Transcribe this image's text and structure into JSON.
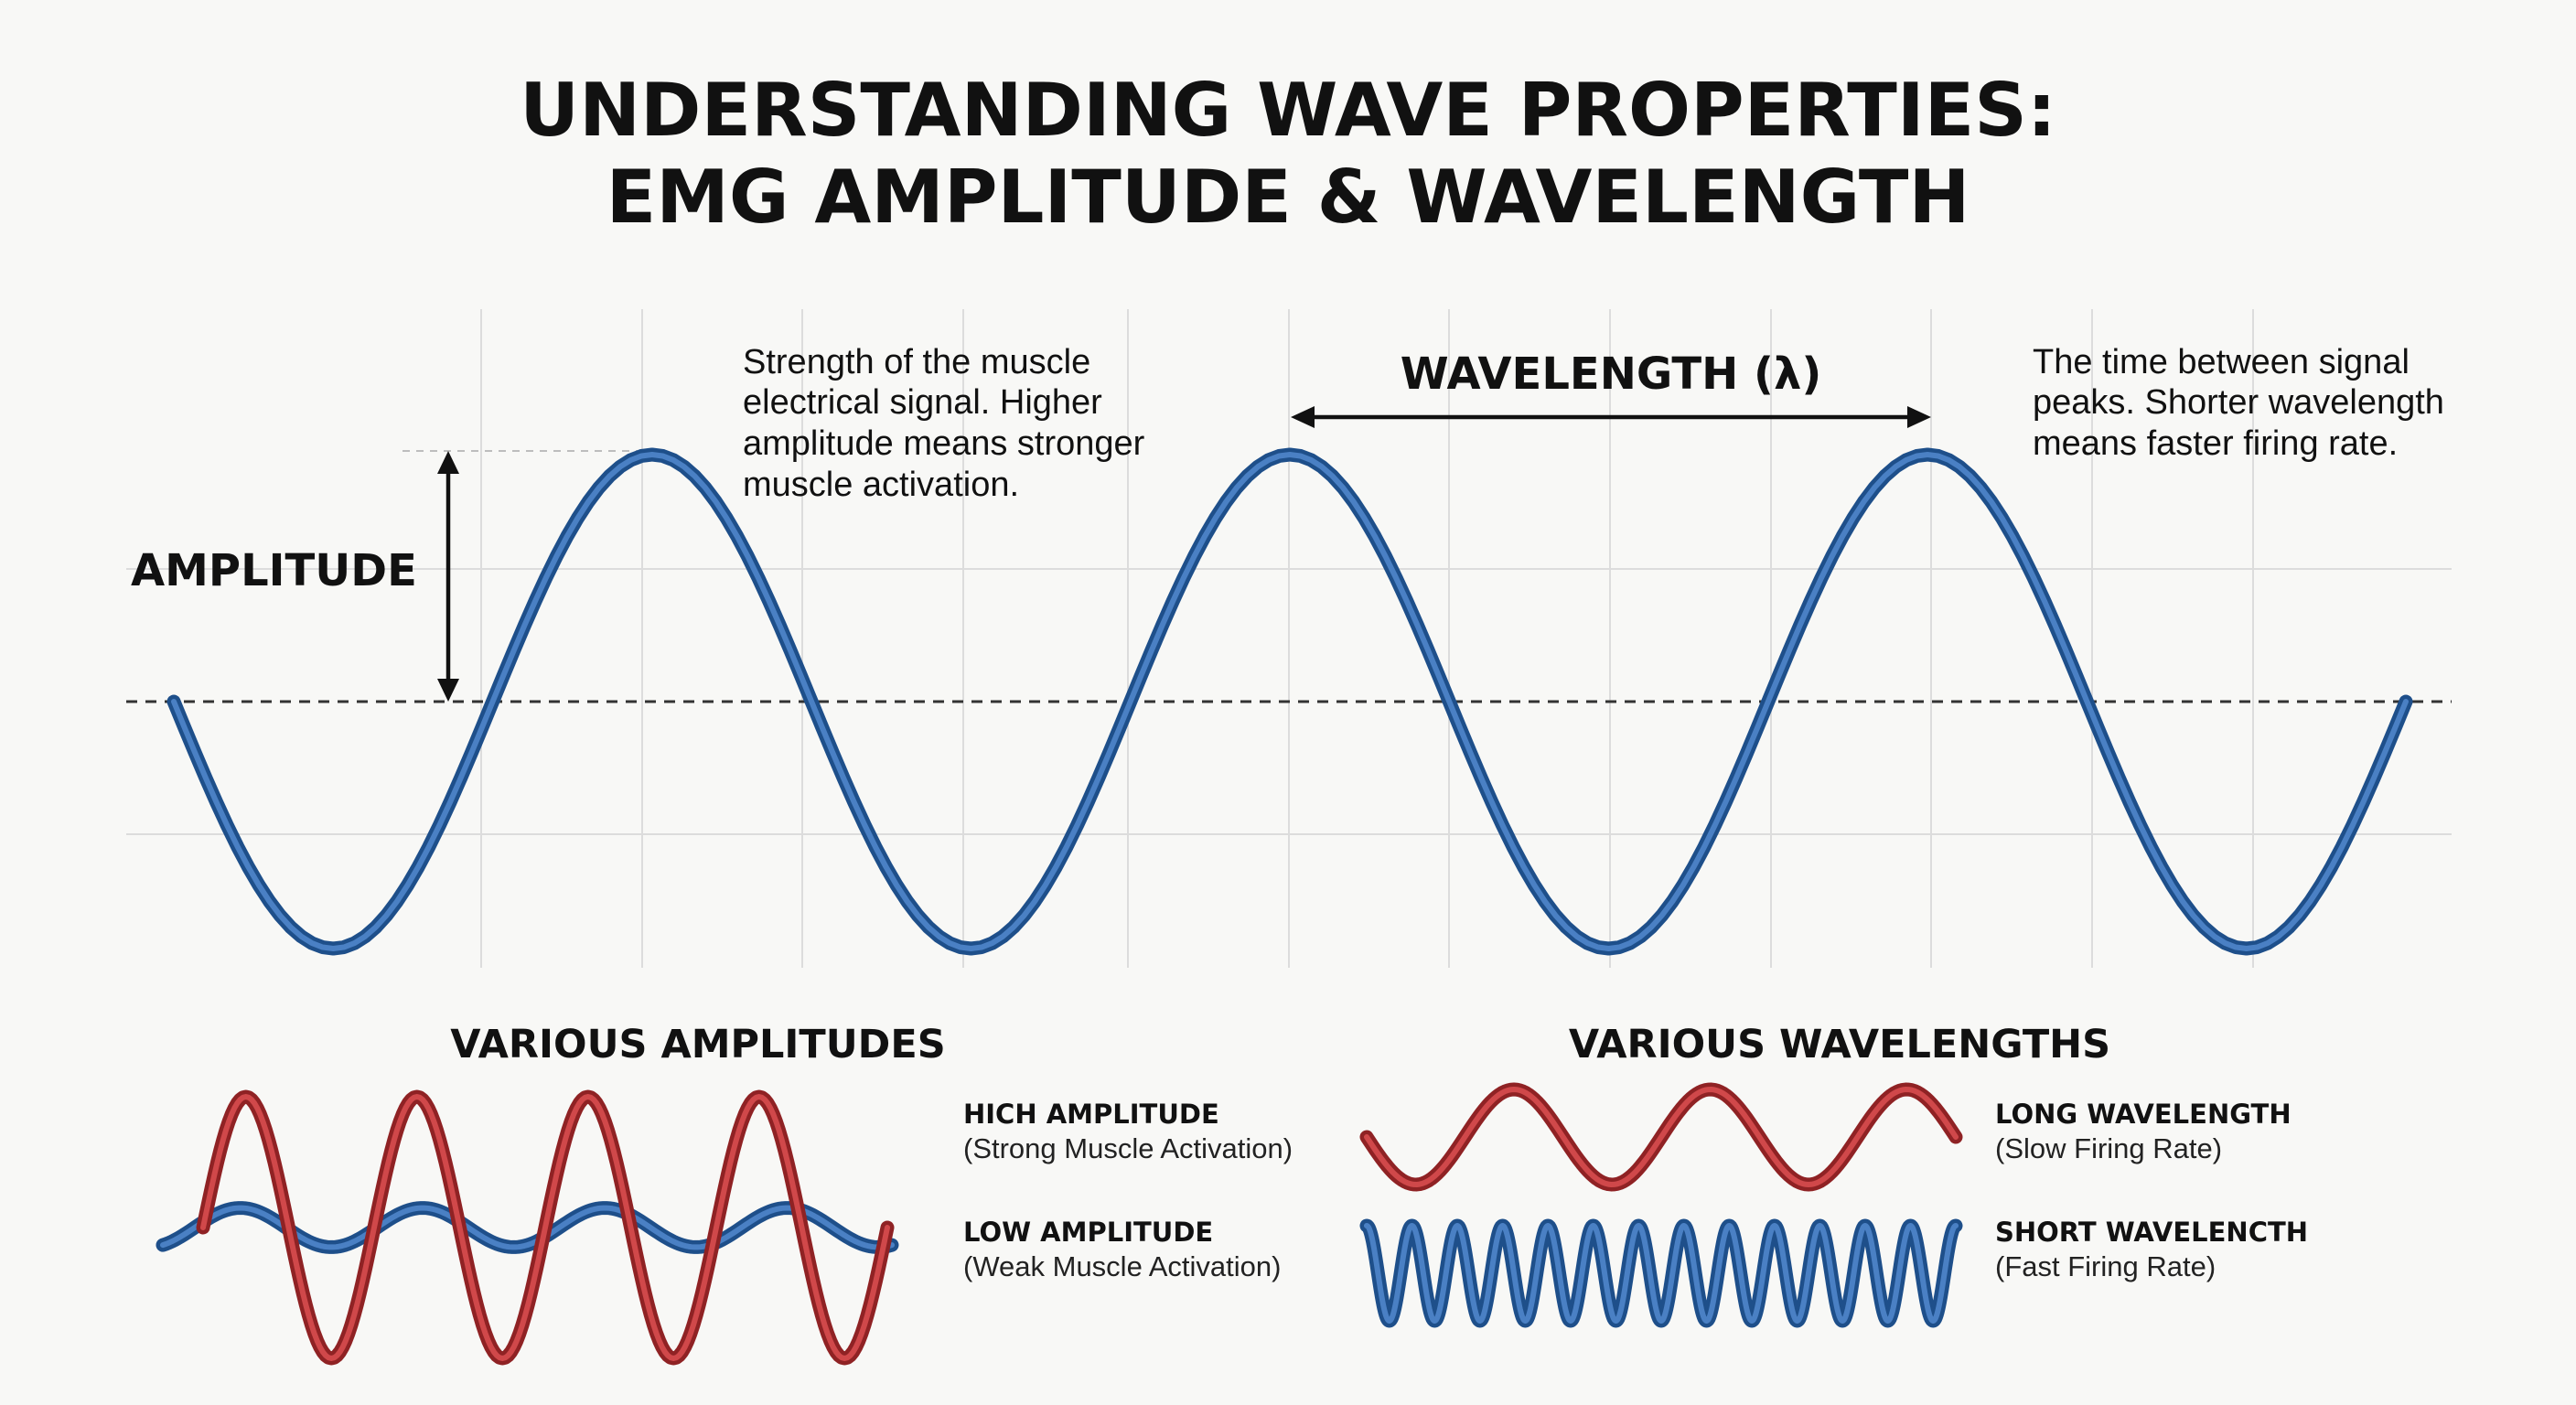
{
  "title": {
    "line1": "UNDERSTANDING WAVE PROPERTIES:",
    "line2": "EMG AMPLITUDE & WAVELENGTH"
  },
  "main_diagram": {
    "amplitude_label": "AMPLITUDE",
    "amplitude_description": [
      "Strength of the muscle",
      "electrical signal. Higher",
      "amplitude means stronger",
      "muscle activation."
    ],
    "wavelength_label": "WAVELENGTH (λ)",
    "wavelength_description": [
      "The time between signal",
      "peaks. Shorter wavelength",
      "means faster firing rate."
    ],
    "wave_cycles": 3.5
  },
  "amplitudes_section": {
    "title": "VARIOUS AMPLITUDES",
    "high": {
      "title": "HICH AMPLITUDE",
      "subtitle": "(Strong Muscle Activation)"
    },
    "low": {
      "title": "LOW AMPLITUDE",
      "subtitle": "(Weak Muscle Activation)"
    },
    "high_relative_amplitude": 1.0,
    "low_relative_amplitude": 0.15
  },
  "wavelengths_section": {
    "title": "VARIOUS WAVELENGTHS",
    "long": {
      "title": "LONG WAVELENGTH",
      "subtitle": "(Slow Firing Rate)"
    },
    "short": {
      "title": "SHORT WAVELENCTH",
      "subtitle": "(Fast Firing Rate)"
    },
    "long_cycles": 3,
    "short_cycles": 13
  },
  "colors": {
    "blue_wave": "#4a80c4",
    "blue_wave_edge": "#1e4f8a",
    "red_wave": "#d0484a",
    "red_wave_edge": "#8f2224",
    "text": "#111111",
    "grid": "#dcdcdc"
  }
}
